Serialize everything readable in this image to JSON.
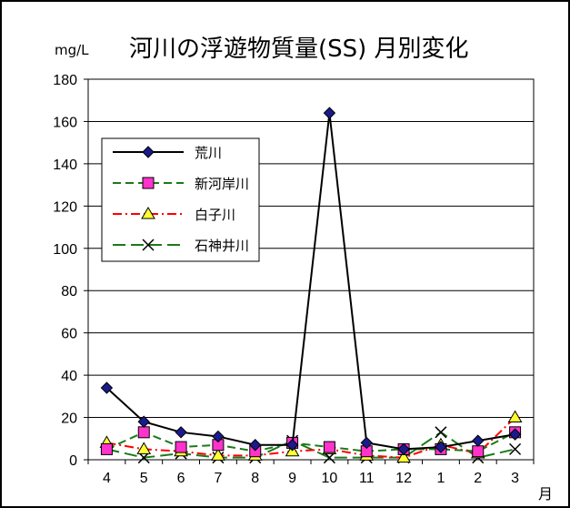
{
  "chart_data": {
    "type": "line",
    "title": "河川の浮遊物質量(SS) 月別変化",
    "ylabel": "mg/L",
    "xlabel": "月",
    "categories": [
      "4",
      "5",
      "6",
      "7",
      "8",
      "9",
      "10",
      "11",
      "12",
      "1",
      "2",
      "3"
    ],
    "ylim": [
      0,
      180
    ],
    "yticks": [
      0,
      20,
      40,
      60,
      80,
      100,
      120,
      140,
      160,
      180
    ],
    "grid": true,
    "legend_position": "upper-left",
    "series": [
      {
        "name": "荒川",
        "values": [
          34,
          18,
          13,
          11,
          7,
          7,
          164,
          8,
          5,
          6,
          9,
          12
        ],
        "color": "#000000",
        "marker": "diamond",
        "marker_fill": "#1a1a8c",
        "dash": "solid"
      },
      {
        "name": "新河岸川",
        "values": [
          5,
          13,
          6,
          7,
          4,
          8,
          6,
          4,
          5,
          5,
          4,
          13
        ],
        "color": "#1a7a1a",
        "marker": "square",
        "marker_fill": "#ff33cc",
        "dash": "dash"
      },
      {
        "name": "白子川",
        "values": [
          8,
          5,
          4,
          2,
          2,
          4,
          5,
          2,
          1,
          7,
          3,
          20
        ],
        "color": "#ff0000",
        "marker": "triangle",
        "marker_fill": "#ffff33",
        "dash": "dashdot"
      },
      {
        "name": "石神井川",
        "values": [
          5,
          1,
          3,
          1,
          1,
          9,
          1,
          1,
          1,
          13,
          1,
          5
        ],
        "color": "#1a7a1a",
        "marker": "x",
        "marker_fill": "#000000",
        "dash": "longdash"
      }
    ]
  }
}
